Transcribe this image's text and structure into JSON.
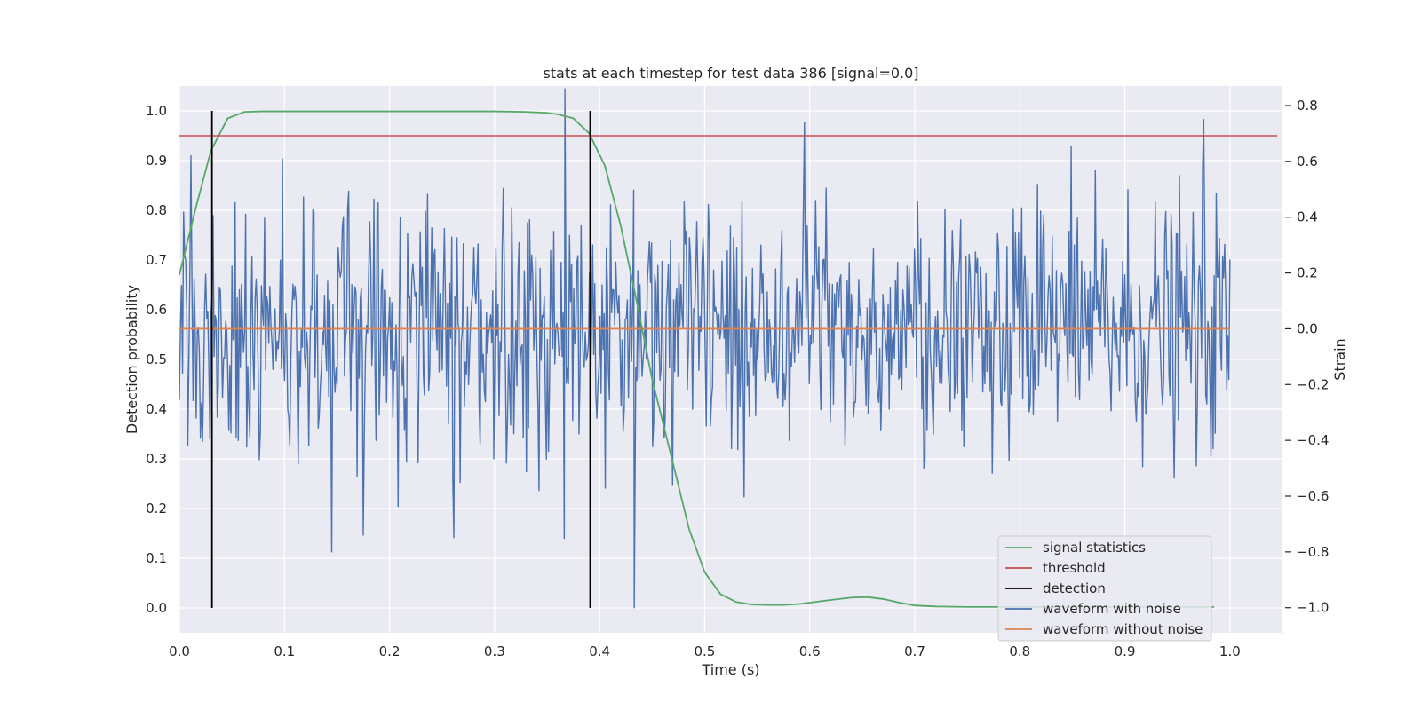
{
  "chart_data": {
    "type": "line",
    "title": "stats at each timestep for test data 386 [signal=0.0]",
    "xlabel": "Time (s)",
    "ylabel_left": "Detection probability",
    "ylabel_right": "Strain",
    "xlim": [
      0.0,
      1.05
    ],
    "ylim_left": [
      -0.05,
      1.05
    ],
    "ylim_right": [
      -1.09,
      0.87
    ],
    "x_ticks": [
      0.0,
      0.1,
      0.2,
      0.3,
      0.4,
      0.5,
      0.6,
      0.7,
      0.8,
      0.9,
      1.0
    ],
    "x_tick_labels": [
      "0.0",
      "0.1",
      "0.2",
      "0.3",
      "0.4",
      "0.5",
      "0.6",
      "0.7",
      "0.8",
      "0.9",
      "1.0"
    ],
    "y_left_ticks": [
      0.0,
      0.1,
      0.2,
      0.3,
      0.4,
      0.5,
      0.6,
      0.7,
      0.8,
      0.9,
      1.0
    ],
    "y_left_tick_labels": [
      "0.0",
      "0.1",
      "0.2",
      "0.3",
      "0.4",
      "0.5",
      "0.6",
      "0.7",
      "0.8",
      "0.9",
      "1.0"
    ],
    "y_right_ticks": [
      -1.0,
      -0.8,
      -0.6,
      -0.4,
      -0.2,
      0.0,
      0.2,
      0.4,
      0.6,
      0.8
    ],
    "y_right_tick_labels": [
      "−1.0",
      "−0.8",
      "−0.6",
      "−0.4",
      "−0.2",
      "0.0",
      "0.2",
      "0.4",
      "0.6",
      "0.8"
    ],
    "grid": true,
    "legend_position": "lower-right",
    "legend": [
      {
        "label": "signal statistics",
        "color": "#55a868"
      },
      {
        "label": "threshold",
        "color": "#c44e52"
      },
      {
        "label": "detection",
        "color": "#000000"
      },
      {
        "label": "waveform with noise",
        "color": "#4c72b0"
      },
      {
        "label": "waveform without noise",
        "color": "#dd8452"
      }
    ],
    "signal_statistics": {
      "axis": "left",
      "x": [
        0.0,
        0.015,
        0.03,
        0.046,
        0.062,
        0.078,
        0.1,
        0.2,
        0.3,
        0.33,
        0.35,
        0.36,
        0.375,
        0.39,
        0.405,
        0.42,
        0.435,
        0.45,
        0.47,
        0.485,
        0.5,
        0.515,
        0.53,
        0.545,
        0.56,
        0.575,
        0.59,
        0.605,
        0.62,
        0.64,
        0.655,
        0.67,
        0.685,
        0.7,
        0.72,
        0.75,
        0.8,
        0.85,
        0.9,
        0.95,
        0.985
      ],
      "y": [
        0.67,
        0.8,
        0.92,
        0.985,
        0.998,
        0.999,
        0.999,
        0.999,
        0.999,
        0.998,
        0.996,
        0.993,
        0.985,
        0.955,
        0.89,
        0.77,
        0.62,
        0.46,
        0.29,
        0.16,
        0.072,
        0.028,
        0.012,
        0.007,
        0.006,
        0.006,
        0.008,
        0.012,
        0.016,
        0.021,
        0.022,
        0.018,
        0.011,
        0.005,
        0.003,
        0.002,
        0.002,
        0.002,
        0.002,
        0.002,
        0.002
      ]
    },
    "threshold": {
      "axis": "left",
      "value": 0.95,
      "x_range": [
        0.0,
        1.045
      ]
    },
    "detections": {
      "axis": "left",
      "x": [
        0.031,
        0.391
      ],
      "y_range": [
        0.0,
        1.0
      ]
    },
    "waveform_without_noise": {
      "axis": "right",
      "x_range": [
        0.0,
        1.0
      ],
      "value": 0.0
    },
    "waveform_with_noise": {
      "axis": "right",
      "x_start": 0.0,
      "x_end": 1.0,
      "sample_count": 1000,
      "approx_std": 0.22,
      "notable_samples": [
        {
          "x": 0.008,
          "y": -0.42
        },
        {
          "x": 0.011,
          "y": 0.62
        },
        {
          "x": 0.145,
          "y": -0.8
        },
        {
          "x": 0.175,
          "y": -0.74
        },
        {
          "x": 0.367,
          "y": 0.86
        },
        {
          "x": 0.433,
          "y": -1.0
        },
        {
          "x": 0.595,
          "y": 0.74
        },
        {
          "x": 0.975,
          "y": 0.75
        }
      ]
    }
  }
}
